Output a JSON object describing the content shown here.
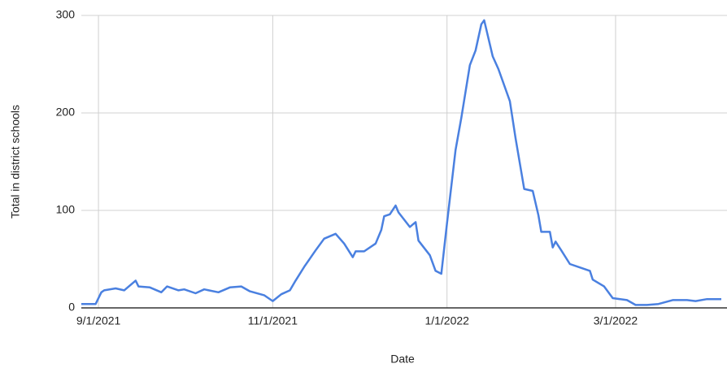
{
  "chart_data": {
    "type": "line",
    "x_label": "Date",
    "y_label": "Total in district schools",
    "x": [
      "2021-08-26",
      "2021-08-31",
      "2021-09-02",
      "2021-09-03",
      "2021-09-07",
      "2021-09-10",
      "2021-09-14",
      "2021-09-15",
      "2021-09-19",
      "2021-09-23",
      "2021-09-25",
      "2021-09-29",
      "2021-10-01",
      "2021-10-05",
      "2021-10-08",
      "2021-10-13",
      "2021-10-17",
      "2021-10-21",
      "2021-10-24",
      "2021-10-29",
      "2021-11-01",
      "2021-11-04",
      "2021-11-07",
      "2021-11-09",
      "2021-11-12",
      "2021-11-16",
      "2021-11-19",
      "2021-11-23",
      "2021-11-26",
      "2021-11-29",
      "2021-11-30",
      "2021-12-03",
      "2021-12-07",
      "2021-12-09",
      "2021-12-10",
      "2021-12-12",
      "2021-12-14",
      "2021-12-15",
      "2021-12-19",
      "2021-12-21",
      "2021-12-22",
      "2021-12-26",
      "2021-12-28",
      "2021-12-30",
      "2022-01-01",
      "2022-01-04",
      "2022-01-06",
      "2022-01-09",
      "2022-01-11",
      "2022-01-13",
      "2022-01-14",
      "2022-01-17",
      "2022-01-19",
      "2022-01-23",
      "2022-01-25",
      "2022-01-28",
      "2022-01-31",
      "2022-02-02",
      "2022-02-03",
      "2022-02-06",
      "2022-02-07",
      "2022-02-08",
      "2022-02-10",
      "2022-02-13",
      "2022-02-17",
      "2022-02-20",
      "2022-02-21",
      "2022-02-25",
      "2022-02-28",
      "2022-03-05",
      "2022-03-08",
      "2022-03-12",
      "2022-03-16",
      "2022-03-21",
      "2022-03-26",
      "2022-03-29",
      "2022-04-02",
      "2022-04-07"
    ],
    "series": [
      {
        "name": "Total in district schools",
        "color": "#4a80e0",
        "values": [
          4,
          4,
          16,
          18,
          20,
          18,
          28,
          22,
          21,
          16,
          22,
          18,
          19,
          15,
          19,
          16,
          21,
          22,
          17,
          13,
          7,
          14,
          18,
          28,
          42,
          59,
          71,
          76,
          66,
          52,
          58,
          58,
          66,
          80,
          94,
          96,
          105,
          98,
          83,
          88,
          69,
          54,
          38,
          35,
          87,
          162,
          195,
          249,
          264,
          291,
          295,
          258,
          245,
          212,
          174,
          122,
          120,
          95,
          78,
          78,
          62,
          68,
          59,
          45,
          41,
          38,
          29,
          22,
          10,
          8,
          3,
          3,
          4,
          8,
          8,
          7,
          9,
          9
        ]
      }
    ],
    "xlim": [
      "2021-08-26",
      "2022-04-09"
    ],
    "xticks": [
      {
        "value": "2021-09-01",
        "label": "9/1/2021"
      },
      {
        "value": "2021-11-01",
        "label": "11/1/2021"
      },
      {
        "value": "2022-01-01",
        "label": "1/1/2022"
      },
      {
        "value": "2022-03-01",
        "label": "3/1/2022"
      }
    ],
    "ylim": [
      0,
      300
    ],
    "yticks": [
      0,
      100,
      200,
      300
    ],
    "grid": true
  }
}
